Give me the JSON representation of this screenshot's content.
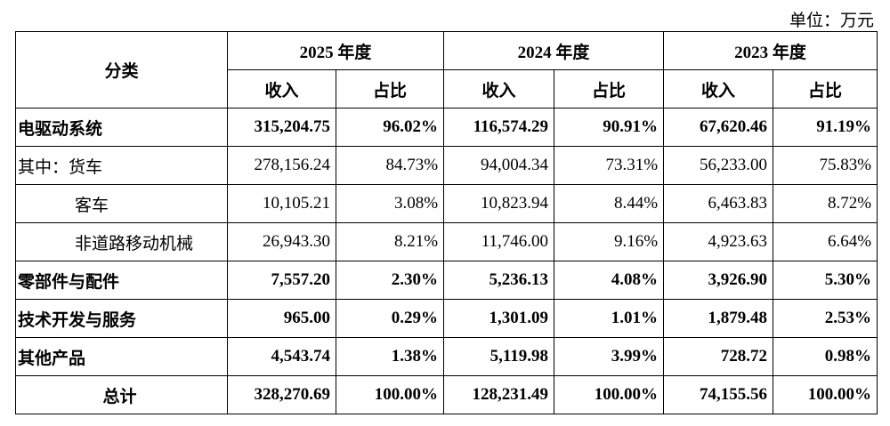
{
  "unit": "单位：万元",
  "table": {
    "header": {
      "category": "分类",
      "years": [
        "2025 年度",
        "2024 年度",
        "2023 年度"
      ],
      "sub": [
        "收入",
        "占比",
        "收入",
        "占比",
        "收入",
        "占比"
      ]
    },
    "rows": [
      [
        "电驱动系统",
        "315,204.75",
        "96.02%",
        "116,574.29",
        "90.91%",
        "67,620.46",
        "91.19%"
      ],
      [
        "其中：货车",
        "278,156.24",
        "84.73%",
        "94,004.34",
        "73.31%",
        "56,233.00",
        "75.83%"
      ],
      [
        "客车",
        "10,105.21",
        "3.08%",
        "10,823.94",
        "8.44%",
        "6,463.83",
        "8.72%"
      ],
      [
        "非道路移动机械",
        "26,943.30",
        "8.21%",
        "11,746.00",
        "9.16%",
        "4,923.63",
        "6.64%"
      ],
      [
        "零部件与配件",
        "7,557.20",
        "2.30%",
        "5,236.13",
        "4.08%",
        "3,926.90",
        "5.30%"
      ],
      [
        "技术开发与服务",
        "965.00",
        "0.29%",
        "1,301.09",
        "1.01%",
        "1,879.48",
        "2.53%"
      ],
      [
        "其他产品",
        "4,543.74",
        "1.38%",
        "5,119.98",
        "3.99%",
        "728.72",
        "0.98%"
      ],
      [
        "总计",
        "328,270.69",
        "100.00%",
        "128,231.49",
        "100.00%",
        "74,155.56",
        "100.00%"
      ]
    ]
  }
}
